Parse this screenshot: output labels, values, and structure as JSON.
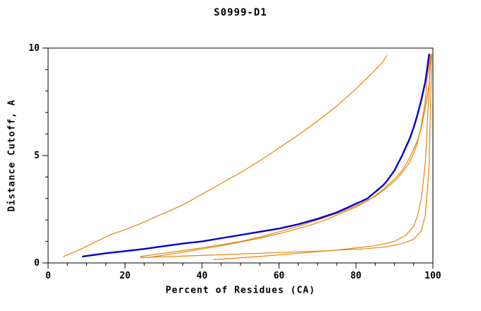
{
  "title": "S0999-D1",
  "colors": {
    "frame": "#000000",
    "primary_series": "#0000cc",
    "secondary_series": "#e8820c",
    "background": "#ffffff"
  },
  "chart_data": {
    "type": "line",
    "title": "S0999-D1",
    "xlabel": "Percent of Residues (CA)",
    "ylabel": "Distance Cutoff, A",
    "xlim": [
      0,
      100
    ],
    "ylim": [
      0,
      10
    ],
    "x_major_ticks": [
      0,
      20,
      40,
      60,
      80,
      100
    ],
    "x_minor_step": 5,
    "y_major_ticks": [
      0,
      5,
      10
    ],
    "y_minor_step": 1,
    "grid": false,
    "legend_position": "none",
    "series": [
      {
        "name": "model-orange-1",
        "color": "#e8820c",
        "width": 1.2,
        "points": [
          [
            4,
            0.3
          ],
          [
            8,
            0.6
          ],
          [
            12,
            0.95
          ],
          [
            16,
            1.3
          ],
          [
            20,
            1.55
          ],
          [
            25,
            1.9
          ],
          [
            28,
            2.15
          ],
          [
            30,
            2.3
          ],
          [
            35,
            2.7
          ],
          [
            40,
            3.2
          ],
          [
            45,
            3.7
          ],
          [
            48,
            4.0
          ],
          [
            50,
            4.2
          ],
          [
            55,
            4.75
          ],
          [
            60,
            5.35
          ],
          [
            65,
            5.95
          ],
          [
            70,
            6.6
          ],
          [
            75,
            7.3
          ],
          [
            80,
            8.1
          ],
          [
            84,
            8.8
          ],
          [
            87,
            9.35
          ],
          [
            88,
            9.65
          ]
        ]
      },
      {
        "name": "model-orange-2",
        "color": "#e8820c",
        "width": 1.2,
        "points": [
          [
            24,
            0.3
          ],
          [
            30,
            0.45
          ],
          [
            40,
            0.7
          ],
          [
            50,
            1.0
          ],
          [
            55,
            1.2
          ],
          [
            60,
            1.45
          ],
          [
            65,
            1.7
          ],
          [
            70,
            2.0
          ],
          [
            75,
            2.3
          ],
          [
            80,
            2.65
          ],
          [
            85,
            3.1
          ],
          [
            88,
            3.5
          ],
          [
            90,
            3.8
          ],
          [
            92,
            4.2
          ],
          [
            94,
            4.7
          ],
          [
            95,
            5.1
          ],
          [
            96,
            5.6
          ],
          [
            97,
            6.4
          ],
          [
            98,
            7.5
          ],
          [
            98.5,
            8.5
          ],
          [
            99,
            9.2
          ],
          [
            99.3,
            9.7
          ]
        ]
      },
      {
        "name": "model-orange-3",
        "color": "#e8820c",
        "width": 1.2,
        "points": [
          [
            26,
            0.25
          ],
          [
            35,
            0.5
          ],
          [
            45,
            0.8
          ],
          [
            55,
            1.15
          ],
          [
            62,
            1.45
          ],
          [
            68,
            1.75
          ],
          [
            72,
            2.0
          ],
          [
            76,
            2.3
          ],
          [
            80,
            2.6
          ],
          [
            84,
            3.0
          ],
          [
            87,
            3.4
          ],
          [
            90,
            3.9
          ],
          [
            92,
            4.3
          ],
          [
            94,
            4.9
          ],
          [
            96,
            5.7
          ],
          [
            97,
            6.3
          ],
          [
            98,
            7.2
          ],
          [
            99,
            8.3
          ],
          [
            99.5,
            9.7
          ]
        ]
      },
      {
        "name": "model-orange-4",
        "color": "#e8820c",
        "width": 1.2,
        "points": [
          [
            43,
            0.15
          ],
          [
            55,
            0.3
          ],
          [
            65,
            0.45
          ],
          [
            75,
            0.6
          ],
          [
            85,
            0.8
          ],
          [
            90,
            1.0
          ],
          [
            93,
            1.3
          ],
          [
            95,
            1.7
          ],
          [
            96,
            2.2
          ],
          [
            97,
            3.0
          ],
          [
            97.5,
            3.8
          ],
          [
            98,
            4.6
          ],
          [
            98.3,
            5.5
          ],
          [
            98.6,
            6.8
          ],
          [
            99,
            8.0
          ],
          [
            99.2,
            9.0
          ],
          [
            99.4,
            9.7
          ]
        ]
      },
      {
        "name": "model-orange-5",
        "color": "#e8820c",
        "width": 1.2,
        "points": [
          [
            24,
            0.25
          ],
          [
            40,
            0.35
          ],
          [
            55,
            0.45
          ],
          [
            70,
            0.55
          ],
          [
            82,
            0.65
          ],
          [
            88,
            0.75
          ],
          [
            92,
            0.9
          ],
          [
            95,
            1.1
          ],
          [
            97,
            1.5
          ],
          [
            98,
            2.2
          ],
          [
            98.5,
            3.2
          ],
          [
            99,
            4.5
          ],
          [
            99.2,
            6.0
          ],
          [
            99.4,
            7.5
          ],
          [
            99.6,
            8.8
          ],
          [
            99.7,
            9.7
          ]
        ]
      },
      {
        "name": "model-blue-main",
        "color": "#0000cc",
        "width": 2.4,
        "points": [
          [
            9,
            0.3
          ],
          [
            15,
            0.45
          ],
          [
            20,
            0.55
          ],
          [
            25,
            0.65
          ],
          [
            30,
            0.78
          ],
          [
            35,
            0.9
          ],
          [
            40,
            1.0
          ],
          [
            45,
            1.15
          ],
          [
            50,
            1.3
          ],
          [
            55,
            1.45
          ],
          [
            60,
            1.6
          ],
          [
            65,
            1.8
          ],
          [
            70,
            2.05
          ],
          [
            75,
            2.35
          ],
          [
            80,
            2.75
          ],
          [
            83,
            3.0
          ],
          [
            85,
            3.3
          ],
          [
            87,
            3.6
          ],
          [
            88,
            3.8
          ],
          [
            90,
            4.3
          ],
          [
            92,
            5.0
          ],
          [
            94,
            5.8
          ],
          [
            95,
            6.3
          ],
          [
            96,
            6.9
          ],
          [
            97,
            7.6
          ],
          [
            98,
            8.4
          ],
          [
            98.5,
            9.0
          ],
          [
            99,
            9.7
          ]
        ]
      }
    ]
  }
}
